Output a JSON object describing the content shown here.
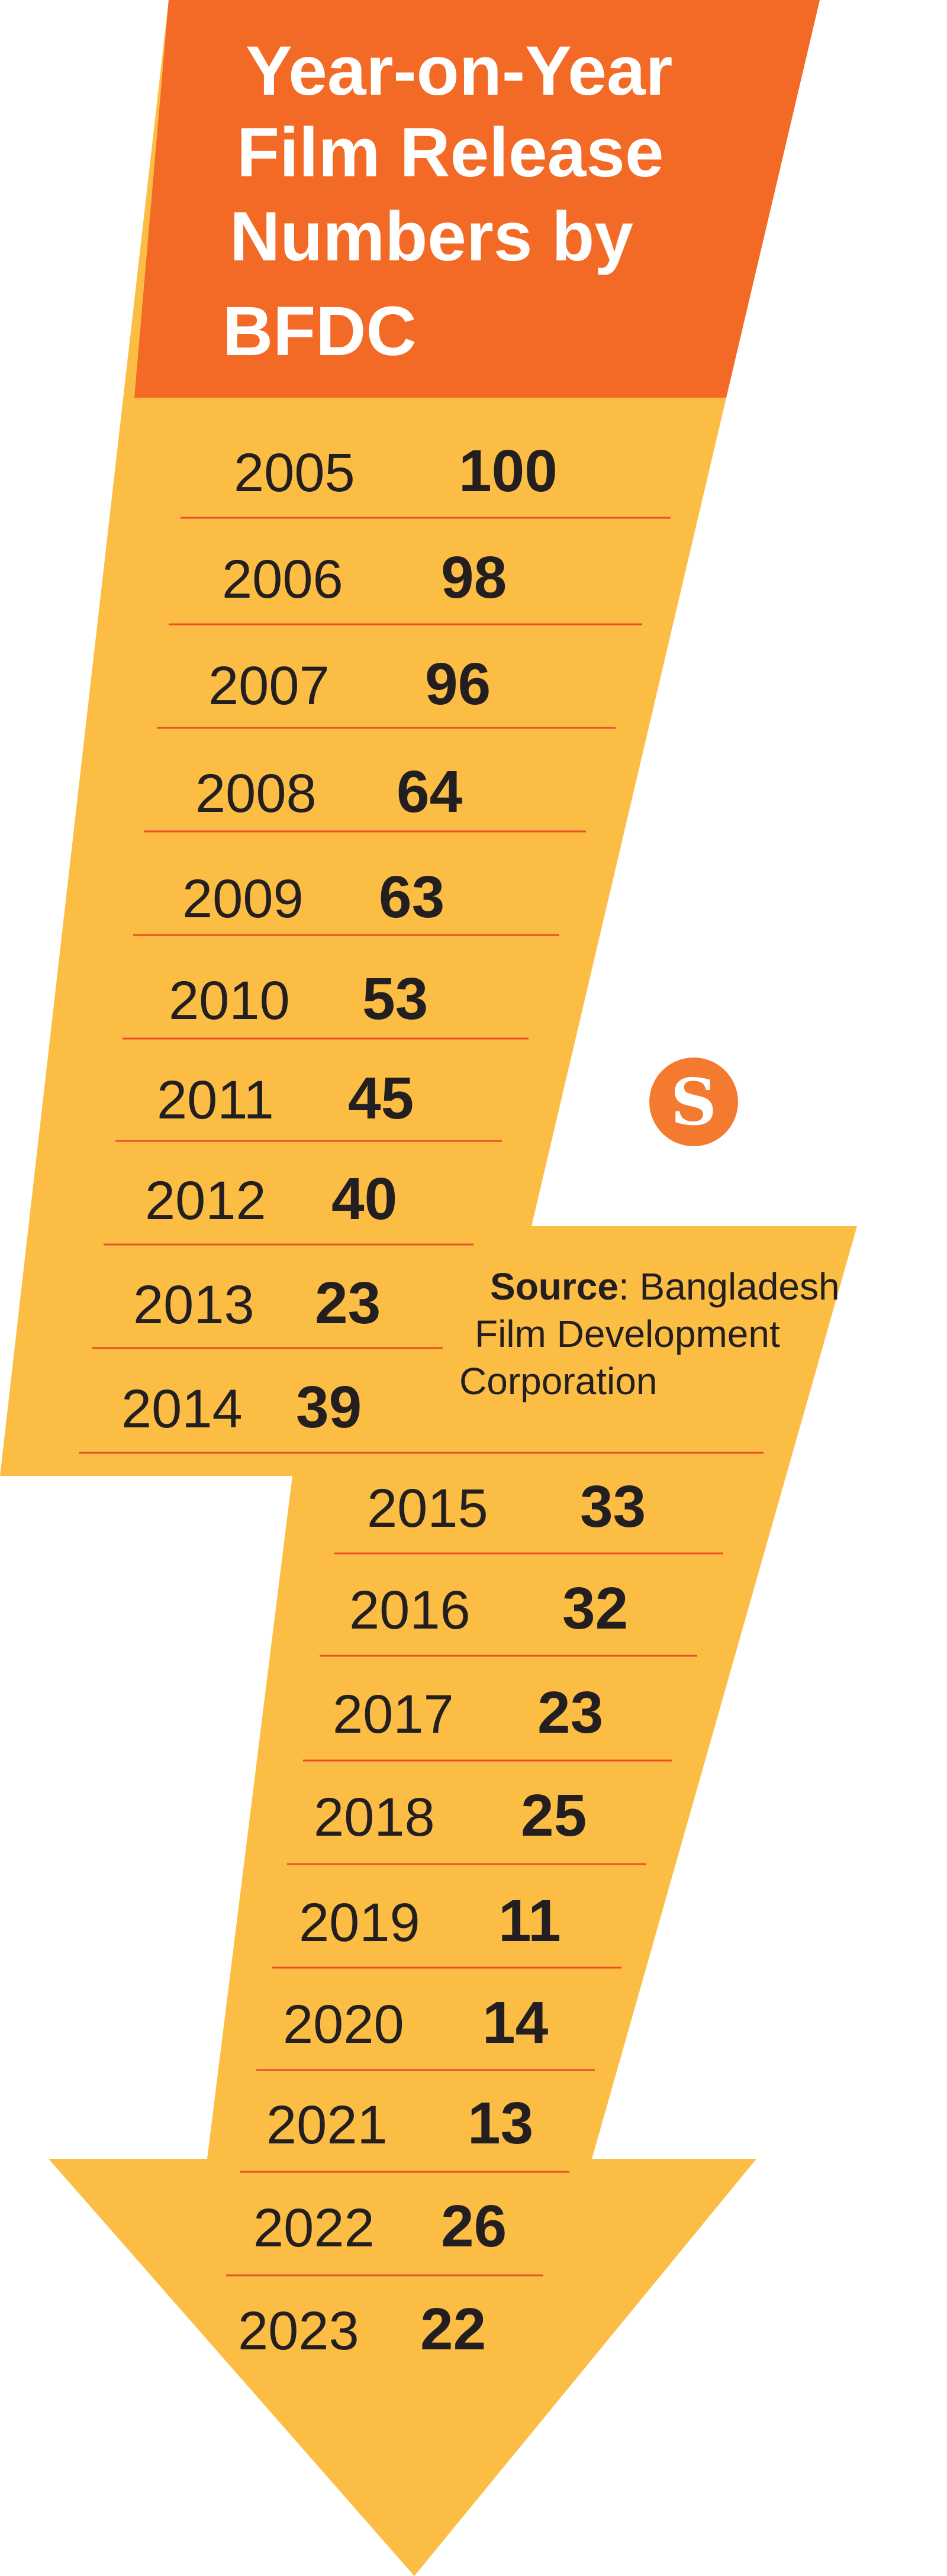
{
  "chart_data": {
    "type": "table",
    "title": [
      "Year-on-Year",
      "Film Release",
      "Numbers by",
      "BFDC"
    ],
    "categories": [
      "2005",
      "2006",
      "2007",
      "2008",
      "2009",
      "2010",
      "2011",
      "2012",
      "2013",
      "2014",
      "2015",
      "2016",
      "2017",
      "2018",
      "2019",
      "2020",
      "2021",
      "2022",
      "2023"
    ],
    "values": [
      100,
      98,
      96,
      64,
      63,
      53,
      45,
      40,
      23,
      39,
      33,
      32,
      23,
      25,
      11,
      14,
      13,
      26,
      22
    ],
    "source": {
      "label": "Source",
      "text_lines": [
        ": Bangladesh",
        "Film Development",
        "Corporation"
      ]
    }
  },
  "colors": {
    "arrow_fill": "#fbbd44",
    "header_fill": "#f26a25",
    "divider": "#e94f2a",
    "text": "#231f20",
    "logo": "#f47a30"
  },
  "logo": {
    "text": "S"
  }
}
